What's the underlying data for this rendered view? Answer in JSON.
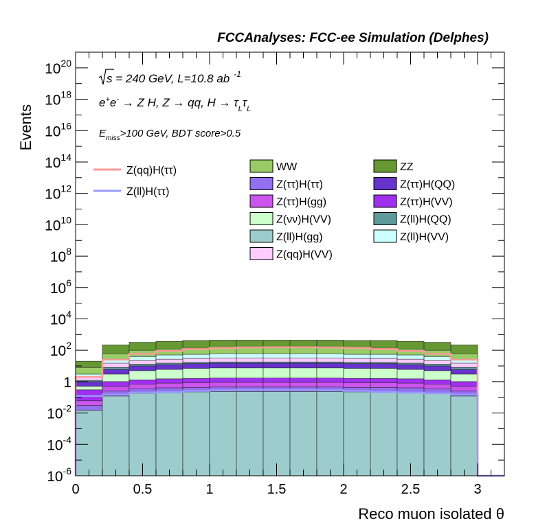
{
  "chart_data": {
    "type": "area",
    "stacked": true,
    "title": "FCCAnalyses: FCC-ee Simulation (Delphes)",
    "xlabel": "Reco muon isolated θ",
    "ylabel": "Events",
    "xlim": [
      0,
      3.2
    ],
    "ylim": [
      1e-06,
      1e+21
    ],
    "yscale": "log",
    "grid": false,
    "x_ticks": [
      {
        "v": 0,
        "label": "0"
      },
      {
        "v": 0.5,
        "label": "0.5"
      },
      {
        "v": 1,
        "label": "1"
      },
      {
        "v": 1.5,
        "label": "1.5"
      },
      {
        "v": 2,
        "label": "2"
      },
      {
        "v": 2.5,
        "label": "2.5"
      },
      {
        "v": 3,
        "label": "3"
      }
    ],
    "y_ticks": [
      {
        "exp": -6,
        "base": "10",
        "sup": "-6"
      },
      {
        "exp": -4,
        "base": "10",
        "sup": "-4"
      },
      {
        "exp": -2,
        "base": "10",
        "sup": "-2"
      },
      {
        "exp": 0,
        "base": "1",
        "sup": ""
      },
      {
        "exp": 2,
        "base": "10",
        "sup": "2"
      },
      {
        "exp": 4,
        "base": "10",
        "sup": "4"
      },
      {
        "exp": 6,
        "base": "10",
        "sup": "6"
      },
      {
        "exp": 8,
        "base": "10",
        "sup": "8"
      },
      {
        "exp": 10,
        "base": "10",
        "sup": "10"
      },
      {
        "exp": 12,
        "base": "10",
        "sup": "12"
      },
      {
        "exp": 14,
        "base": "10",
        "sup": "14"
      },
      {
        "exp": 16,
        "base": "10",
        "sup": "16"
      },
      {
        "exp": 18,
        "base": "10",
        "sup": "18"
      },
      {
        "exp": 20,
        "base": "10",
        "sup": "20"
      }
    ],
    "bin_edges": [
      0,
      0.2,
      0.4,
      0.6,
      0.8,
      1.0,
      1.2,
      1.4,
      1.6,
      1.8,
      2.0,
      2.2,
      2.4,
      2.6,
      2.8,
      3.0
    ],
    "stack_totals": [
      {
        "name": "Z(ll)H(gg)",
        "color": "#9ccccc",
        "values": [
          0.015,
          0.12,
          0.18,
          0.2,
          0.22,
          0.23,
          0.23,
          0.23,
          0.23,
          0.23,
          0.22,
          0.22,
          0.2,
          0.18,
          0.12
        ]
      },
      {
        "name": "Z(ττ)H(ττ)",
        "color": "#9370f0",
        "values": [
          0.03,
          0.25,
          0.35,
          0.4,
          0.42,
          0.45,
          0.45,
          0.45,
          0.45,
          0.45,
          0.42,
          0.42,
          0.4,
          0.35,
          0.25
        ]
      },
      {
        "name": "Z(ττ)H(gg)",
        "color": "#cc55ee",
        "values": [
          0.06,
          0.5,
          0.7,
          0.8,
          0.85,
          0.9,
          0.9,
          0.9,
          0.9,
          0.9,
          0.85,
          0.85,
          0.8,
          0.7,
          0.5
        ]
      },
      {
        "name": "Z(ττ)H(VV)",
        "color": "#a030f0",
        "values": [
          0.3,
          1.0,
          1.3,
          1.5,
          1.6,
          1.7,
          1.7,
          1.7,
          1.7,
          1.7,
          1.6,
          1.6,
          1.5,
          1.3,
          1.0
        ]
      },
      {
        "name": "Z(νν)H(VV)",
        "color": "#ccffcc",
        "values": [
          0.5,
          3,
          5,
          6,
          7,
          7.5,
          7.5,
          7.5,
          7.5,
          7.5,
          7,
          7,
          6,
          5,
          3
        ]
      },
      {
        "name": "Z(ττ)H(QQ)",
        "color": "#6633cc",
        "values": [
          1.0,
          6,
          10,
          12,
          14,
          15,
          15,
          15,
          15,
          15,
          14,
          14,
          12,
          10,
          6
        ]
      },
      {
        "name": "Z(ll)H(QQ)",
        "color": "#5f9a9a",
        "values": [
          1.2,
          8,
          13,
          15,
          17,
          18,
          18,
          18,
          18,
          18,
          17,
          17,
          15,
          13,
          8
        ]
      },
      {
        "name": "Z(qq)H(VV)",
        "color": "#ffccff",
        "values": [
          2,
          15,
          22,
          27,
          30,
          32,
          32,
          32,
          32,
          32,
          30,
          30,
          27,
          22,
          15
        ]
      },
      {
        "name": "Z(ll)H(VV)",
        "color": "#ccffff",
        "values": [
          3,
          25,
          40,
          50,
          55,
          60,
          60,
          60,
          60,
          60,
          55,
          55,
          50,
          40,
          25
        ]
      },
      {
        "name": "WW",
        "color": "#99cc66",
        "values": [
          8,
          60,
          100,
          120,
          135,
          145,
          145,
          145,
          145,
          145,
          135,
          135,
          120,
          100,
          60
        ]
      },
      {
        "name": "ZZ",
        "color": "#669933",
        "values": [
          20,
          220,
          320,
          370,
          420,
          440,
          440,
          440,
          440,
          440,
          420,
          420,
          370,
          320,
          220
        ]
      }
    ],
    "signal_lines": [
      {
        "name": "Z(qq)H(ττ)",
        "color": "#ff9999",
        "values": [
          2,
          25,
          60,
          90,
          120,
          140,
          150,
          155,
          155,
          150,
          140,
          120,
          90,
          60,
          25
        ]
      },
      {
        "name": "Z(ll)H(ττ)",
        "color": "#9999ff",
        "values": [
          0.12,
          0.15,
          0.2,
          0.22,
          0.25,
          0.28,
          0.3,
          0.3,
          0.3,
          0.28,
          0.25,
          0.22,
          0.2,
          0.18,
          0.15
        ]
      }
    ],
    "annotations": {
      "sqrt_s": "s",
      "energy_lumi": " = 240 GeV, L=10.8 ab",
      "lumi_sup": "-1",
      "process_a": "e",
      "process_a_sup": "+",
      "process_b": "e",
      "process_b_sup": "-",
      "process_rest": " → Z H, Z  → qq, H  → ",
      "tau": "τ",
      "tau_sub": "L",
      "cut_e": "E",
      "cut_sub": "miss",
      "cut_rest": ">100 GeV, BDT score>0.5"
    },
    "legend": {
      "lines": [
        {
          "label": "Z(qq)H(ττ)",
          "color": "#ff9999"
        },
        {
          "label": "Z(ll)H(ττ)",
          "color": "#9999ff"
        }
      ],
      "col1": [
        {
          "label": "WW",
          "color": "#99cc66"
        },
        {
          "label": "Z(ττ)H(ττ)",
          "color": "#9370f0"
        },
        {
          "label": "Z(ττ)H(gg)",
          "color": "#cc55ee"
        },
        {
          "label": "Z(νν)H(VV)",
          "color": "#ccffcc"
        },
        {
          "label": "Z(ll)H(gg)",
          "color": "#9ccccc"
        },
        {
          "label": "Z(qq)H(VV)",
          "color": "#ffccff"
        }
      ],
      "col2": [
        {
          "label": "ZZ",
          "color": "#669933"
        },
        {
          "label": "Z(ττ)H(QQ)",
          "color": "#6633cc"
        },
        {
          "label": "Z(ττ)H(VV)",
          "color": "#a030f0"
        },
        {
          "label": "Z(ll)H(QQ)",
          "color": "#5f9a9a"
        },
        {
          "label": "Z(ll)H(VV)",
          "color": "#ccffff"
        }
      ]
    }
  }
}
